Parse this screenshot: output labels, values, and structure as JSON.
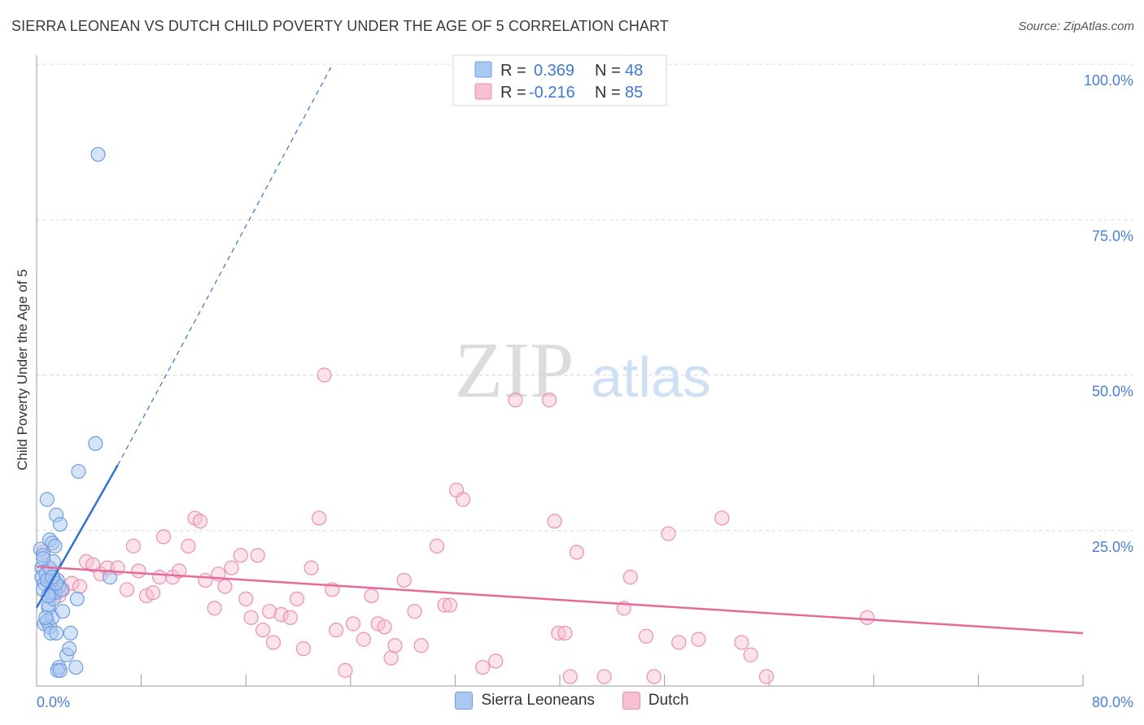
{
  "title": "SIERRA LEONEAN VS DUTCH CHILD POVERTY UNDER THE AGE OF 5 CORRELATION CHART",
  "source": "Source: ZipAtlas.com",
  "watermark": {
    "zip": "ZIP",
    "atlas": "atlas"
  },
  "colors": {
    "blue_fill": "#a9c8f2",
    "blue_stroke": "#6f9fe0",
    "blue_line": "#2f72d0",
    "pink_fill": "#f6bfd2",
    "pink_stroke": "#ec8fb0",
    "pink_line": "#e56b98",
    "tick_text": "#4a7fd4",
    "grid": "#d8d8d8"
  },
  "legend_box": {
    "rows": [
      {
        "r_label": "R =",
        "r_value": "0.369",
        "n_label": "N =",
        "n_value": "48"
      },
      {
        "r_label": "R =",
        "r_value": "-0.216",
        "n_label": "N =",
        "n_value": "85"
      }
    ]
  },
  "bottom_legend": {
    "series1": "Sierra Leoneans",
    "series2": "Dutch"
  },
  "chart_data": {
    "type": "scatter",
    "title": "SIERRA LEONEAN VS DUTCH CHILD POVERTY UNDER THE AGE OF 5 CORRELATION CHART",
    "xlabel": "",
    "ylabel": "Child Poverty Under the Age of 5",
    "xlim": [
      0,
      80
    ],
    "ylim": [
      0,
      100
    ],
    "x_tick_labels": [
      "0.0%",
      "80.0%"
    ],
    "y_tick_labels": [
      "25.0%",
      "50.0%",
      "75.0%",
      "100.0%"
    ],
    "y_ticks": [
      25,
      50,
      75,
      100
    ],
    "legend_position": "top-center",
    "series": [
      {
        "name": "Sierra Leoneans",
        "R": 0.369,
        "N": 48,
        "trend": {
          "x0": 0,
          "y0": 12.6,
          "x1": 6.2,
          "y1": 35.5,
          "dashed_to_x": 22.5,
          "dashed_to_y": 99.5
        },
        "points": [
          [
            0.3,
            22
          ],
          [
            0.4,
            19
          ],
          [
            0.5,
            21
          ],
          [
            0.4,
            17.5
          ],
          [
            0.6,
            16.5
          ],
          [
            0.5,
            15.5
          ],
          [
            0.7,
            18
          ],
          [
            0.8,
            17
          ],
          [
            0.6,
            10
          ],
          [
            0.9,
            12.5
          ],
          [
            0.8,
            10.5
          ],
          [
            1.0,
            9.5
          ],
          [
            1.1,
            8.5
          ],
          [
            1.2,
            11
          ],
          [
            0.9,
            13
          ],
          [
            1.3,
            14
          ],
          [
            1.0,
            23.5
          ],
          [
            1.2,
            23
          ],
          [
            1.4,
            22.5
          ],
          [
            1.5,
            27.5
          ],
          [
            1.6,
            17
          ],
          [
            1.7,
            16
          ],
          [
            1.4,
            15
          ],
          [
            1.8,
            26
          ],
          [
            2.0,
            12
          ],
          [
            1.5,
            8.5
          ],
          [
            2.6,
            8.5
          ],
          [
            2.3,
            5
          ],
          [
            2.5,
            6
          ],
          [
            1.7,
            3
          ],
          [
            1.6,
            2.5
          ],
          [
            1.8,
            2.5
          ],
          [
            3.0,
            3
          ],
          [
            3.1,
            14
          ],
          [
            3.2,
            34.5
          ],
          [
            4.5,
            39
          ],
          [
            4.7,
            85.5
          ],
          [
            5.6,
            17.5
          ],
          [
            0.8,
            30
          ],
          [
            1.0,
            19
          ],
          [
            1.3,
            20
          ],
          [
            0.5,
            20.5
          ],
          [
            0.7,
            11
          ],
          [
            1.1,
            15
          ],
          [
            1.9,
            15.5
          ],
          [
            1.5,
            16.5
          ],
          [
            0.9,
            14.5
          ],
          [
            1.2,
            17.5
          ]
        ]
      },
      {
        "name": "Dutch",
        "R": -0.216,
        "N": 85,
        "trend": {
          "x0": 0,
          "y0": 19.2,
          "x1": 80,
          "y1": 8.5
        },
        "points": [
          [
            0.5,
            21.5
          ],
          [
            0.9,
            17
          ],
          [
            1.1,
            18.5
          ],
          [
            1.3,
            17.5
          ],
          [
            1.5,
            15
          ],
          [
            1.7,
            14.5
          ],
          [
            2.0,
            15.5
          ],
          [
            2.7,
            16.5
          ],
          [
            3.3,
            16
          ],
          [
            3.8,
            20
          ],
          [
            4.3,
            19.5
          ],
          [
            4.9,
            18
          ],
          [
            5.4,
            19
          ],
          [
            6.2,
            19
          ],
          [
            6.9,
            15.5
          ],
          [
            7.4,
            22.5
          ],
          [
            7.8,
            18.5
          ],
          [
            8.4,
            14.5
          ],
          [
            8.9,
            15
          ],
          [
            9.7,
            24
          ],
          [
            9.4,
            17.5
          ],
          [
            10.4,
            17.5
          ],
          [
            10.9,
            18.5
          ],
          [
            11.6,
            22.5
          ],
          [
            12.1,
            27
          ],
          [
            12.5,
            26.5
          ],
          [
            12.9,
            17
          ],
          [
            13.6,
            12.5
          ],
          [
            13.9,
            18
          ],
          [
            14.4,
            16
          ],
          [
            14.9,
            19
          ],
          [
            15.6,
            21
          ],
          [
            16.0,
            14
          ],
          [
            16.4,
            11
          ],
          [
            16.9,
            21
          ],
          [
            17.3,
            9
          ],
          [
            17.8,
            12
          ],
          [
            18.1,
            7
          ],
          [
            18.7,
            11.5
          ],
          [
            19.4,
            11
          ],
          [
            19.9,
            14
          ],
          [
            20.4,
            6
          ],
          [
            21.0,
            19
          ],
          [
            21.6,
            27
          ],
          [
            22.0,
            50
          ],
          [
            22.6,
            15.5
          ],
          [
            22.9,
            9
          ],
          [
            23.6,
            2.5
          ],
          [
            24.2,
            10
          ],
          [
            25.0,
            7.5
          ],
          [
            25.6,
            14.5
          ],
          [
            26.1,
            10
          ],
          [
            26.6,
            9.5
          ],
          [
            27.1,
            4.5
          ],
          [
            27.4,
            6.5
          ],
          [
            28.1,
            17
          ],
          [
            28.9,
            12
          ],
          [
            29.4,
            6.5
          ],
          [
            30.6,
            22.5
          ],
          [
            31.2,
            13
          ],
          [
            31.6,
            13
          ],
          [
            32.1,
            31.5
          ],
          [
            32.6,
            30
          ],
          [
            34.1,
            3
          ],
          [
            35.1,
            4
          ],
          [
            36.6,
            46
          ],
          [
            39.2,
            46
          ],
          [
            39.6,
            26.5
          ],
          [
            39.9,
            8.5
          ],
          [
            40.4,
            8.5
          ],
          [
            40.8,
            1.5
          ],
          [
            41.3,
            21.5
          ],
          [
            43.4,
            1.5
          ],
          [
            44.9,
            12.5
          ],
          [
            45.4,
            17.5
          ],
          [
            46.6,
            8
          ],
          [
            47.2,
            1.5
          ],
          [
            48.3,
            24.5
          ],
          [
            49.1,
            7
          ],
          [
            50.6,
            7.5
          ],
          [
            52.4,
            27
          ],
          [
            53.9,
            7
          ],
          [
            54.6,
            5
          ],
          [
            55.8,
            1.5
          ],
          [
            63.5,
            11
          ]
        ]
      }
    ]
  }
}
